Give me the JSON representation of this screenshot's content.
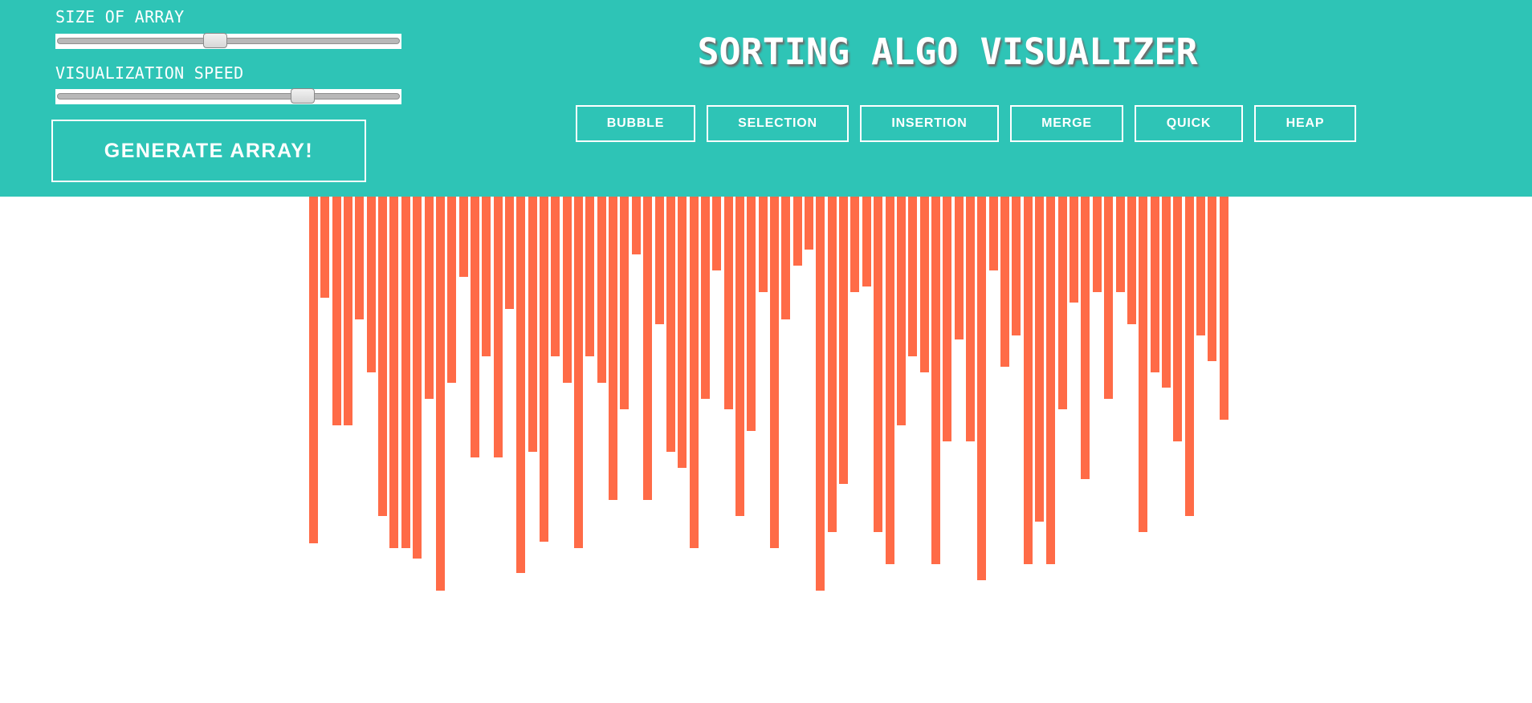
{
  "controls": {
    "size_label": "SIZE OF ARRAY",
    "speed_label": "VISUALIZATION SPEED",
    "size_slider_value": 0.46,
    "speed_slider_value": 0.73,
    "generate_label": "GENERATE ARRAY!"
  },
  "title": "SORTING ALGO VISUALIZER",
  "algorithms": [
    "BUBBLE",
    "SELECTION",
    "INSERTION",
    "MERGE",
    "QUICK",
    "HEAP"
  ],
  "colors": {
    "header": "#2ec4b6",
    "bar": "#ff6b47",
    "text": "#ffffff"
  },
  "array_values": [
    432,
    126,
    285,
    285,
    153,
    219,
    398,
    438,
    438,
    451,
    252,
    491,
    232,
    100,
    325,
    199,
    325,
    140,
    469,
    318,
    430,
    199,
    232,
    438,
    199,
    232,
    378,
    265,
    72,
    378,
    159,
    318,
    338,
    438,
    252,
    92,
    265,
    398,
    292,
    119,
    438,
    153,
    86,
    66,
    491,
    418,
    358,
    119,
    112,
    418,
    458,
    285,
    199,
    219,
    458,
    305,
    178,
    305,
    478,
    92,
    212,
    173,
    458,
    405,
    458,
    265,
    132,
    352,
    119,
    252,
    119,
    159,
    418,
    219,
    238,
    305,
    398,
    173,
    205,
    278
  ],
  "array_max": 491
}
